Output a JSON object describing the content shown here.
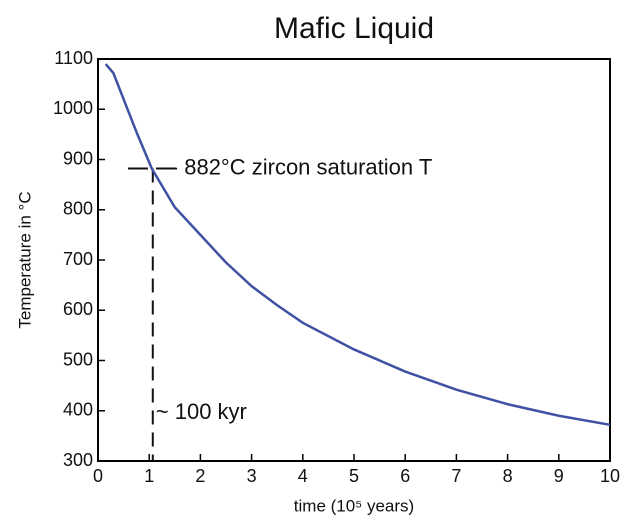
{
  "chart_data": {
    "type": "line",
    "title": "Mafic Liquid",
    "x_label": "time (10⁵ years)",
    "y_label": "Temperature in °C",
    "x": [
      0.15,
      0.3,
      0.5,
      0.75,
      1.05,
      1.5,
      2,
      2.5,
      3,
      3.5,
      4,
      5,
      6,
      7,
      8,
      9,
      10
    ],
    "series": [
      {
        "name": "Mafic Liquid",
        "color": "#3f51a3",
        "values": [
          1090,
          1072,
          1020,
          955,
          882,
          805,
          750,
          695,
          648,
          610,
          575,
          522,
          478,
          442,
          413,
          390,
          372
        ]
      }
    ],
    "xlim": [
      0,
      10
    ],
    "xticks": [
      0,
      1,
      2,
      3,
      4,
      5,
      6,
      7,
      8,
      9,
      10
    ],
    "ylim": [
      300,
      1100
    ],
    "yticks": [
      300,
      400,
      500,
      600,
      700,
      800,
      900,
      1000,
      1100
    ],
    "hline": 882,
    "vline": 1.07,
    "annotations": [
      "- 882°C zircon saturation T",
      "~ 100 kyr"
    ]
  }
}
